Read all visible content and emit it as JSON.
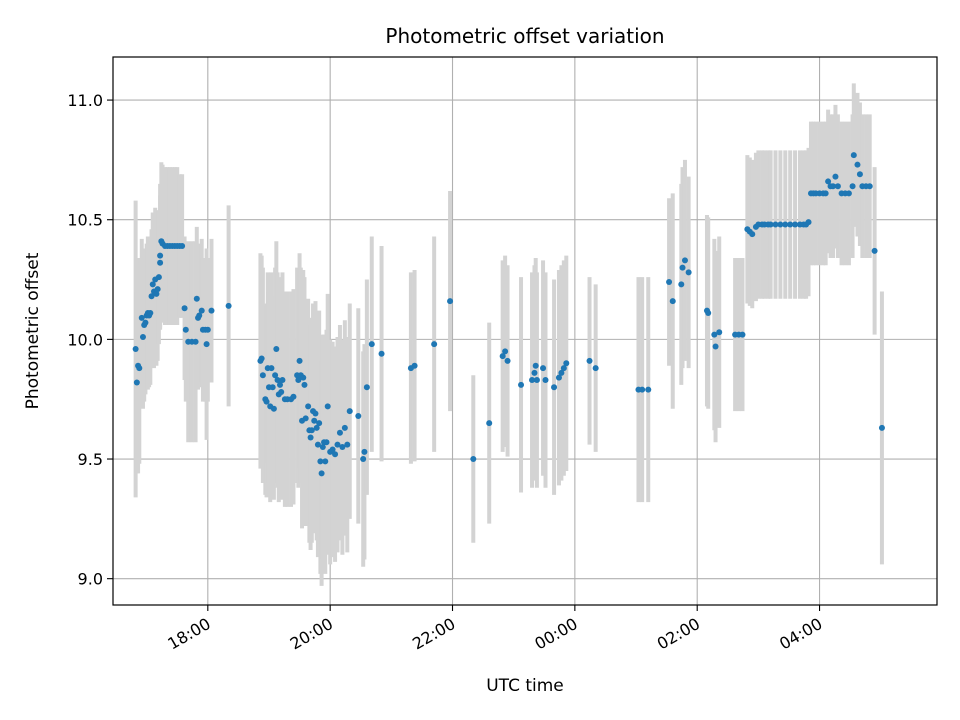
{
  "chart_data": {
    "type": "scatter",
    "title": "Photometric offset variation",
    "xlabel": "UTC time",
    "ylabel": "Photometric offset",
    "ylim": [
      8.89,
      11.18
    ],
    "xlim_hours": [
      16.45,
      29.92
    ],
    "x_ticks": [
      {
        "value": 18,
        "label": "18:00"
      },
      {
        "value": 20,
        "label": "20:00"
      },
      {
        "value": 22,
        "label": "22:00"
      },
      {
        "value": 24,
        "label": "00:00"
      },
      {
        "value": 26,
        "label": "02:00"
      },
      {
        "value": 28,
        "label": "04:00"
      }
    ],
    "y_ticks": [
      {
        "value": 9.0,
        "label": "9.0"
      },
      {
        "value": 9.5,
        "label": "9.5"
      },
      {
        "value": 10.0,
        "label": "10.0"
      },
      {
        "value": 10.5,
        "label": "10.5"
      },
      {
        "value": 11.0,
        "label": "11.0"
      }
    ],
    "grid": true,
    "colors": {
      "marker": "#1f77b4",
      "errorbar": "#d3d3d3",
      "grid": "#b0b0b0",
      "axes": "#000000"
    },
    "series": [
      {
        "name": "Photometric offset",
        "points": [
          [
            16.82,
            9.96,
            0.62
          ],
          [
            16.84,
            9.82,
            0.38
          ],
          [
            16.86,
            9.89,
            0.45
          ],
          [
            16.88,
            9.88,
            0.4
          ],
          [
            16.92,
            10.09,
            0.33
          ],
          [
            16.94,
            10.01,
            0.3
          ],
          [
            16.96,
            10.06,
            0.32
          ],
          [
            16.98,
            10.07,
            0.3
          ],
          [
            17.0,
            10.1,
            0.3
          ],
          [
            17.02,
            10.11,
            0.32
          ],
          [
            17.04,
            10.1,
            0.3
          ],
          [
            17.06,
            10.11,
            0.3
          ],
          [
            17.08,
            10.18,
            0.28
          ],
          [
            17.1,
            10.23,
            0.3
          ],
          [
            17.12,
            10.2,
            0.32
          ],
          [
            17.14,
            10.25,
            0.3
          ],
          [
            17.16,
            10.19,
            0.3
          ],
          [
            17.18,
            10.21,
            0.3
          ],
          [
            17.2,
            10.26,
            0.28
          ],
          [
            17.22,
            10.35,
            0.3
          ],
          [
            17.22,
            10.32,
            0.28
          ],
          [
            17.24,
            10.41,
            0.33
          ],
          [
            17.26,
            10.4,
            0.33
          ],
          [
            17.3,
            10.39,
            0.33
          ],
          [
            17.34,
            10.39,
            0.33
          ],
          [
            17.38,
            10.39,
            0.33
          ],
          [
            17.42,
            10.39,
            0.33
          ],
          [
            17.46,
            10.39,
            0.33
          ],
          [
            17.5,
            10.39,
            0.33
          ],
          [
            17.54,
            10.39,
            0.3
          ],
          [
            17.58,
            10.39,
            0.3
          ],
          [
            17.62,
            10.13,
            0.3
          ],
          [
            17.64,
            10.04,
            0.3
          ],
          [
            17.68,
            9.99,
            0.42
          ],
          [
            17.74,
            9.99,
            0.42
          ],
          [
            17.8,
            9.99,
            0.42
          ],
          [
            17.82,
            10.17,
            0.3
          ],
          [
            17.84,
            10.09,
            0.3
          ],
          [
            17.86,
            10.1,
            0.3
          ],
          [
            17.9,
            10.12,
            0.3
          ],
          [
            17.92,
            10.04,
            0.3
          ],
          [
            17.96,
            10.04,
            0.3
          ],
          [
            17.98,
            9.98,
            0.4
          ],
          [
            18.0,
            10.04,
            0.3
          ],
          [
            18.06,
            10.12,
            0.3
          ],
          [
            18.34,
            10.14,
            0.42
          ],
          [
            18.86,
            9.91,
            0.45
          ],
          [
            18.88,
            9.92,
            0.43
          ],
          [
            18.9,
            9.85,
            0.45
          ],
          [
            18.94,
            9.75,
            0.4
          ],
          [
            18.96,
            9.74,
            0.4
          ],
          [
            18.98,
            9.88,
            0.4
          ],
          [
            19.0,
            9.8,
            0.4
          ],
          [
            19.02,
            9.72,
            0.4
          ],
          [
            19.04,
            9.88,
            0.4
          ],
          [
            19.06,
            9.8,
            0.38
          ],
          [
            19.08,
            9.71,
            0.38
          ],
          [
            19.1,
            9.85,
            0.45
          ],
          [
            19.12,
            9.96,
            0.45
          ],
          [
            19.14,
            9.83,
            0.45
          ],
          [
            19.16,
            9.77,
            0.45
          ],
          [
            19.18,
            9.81,
            0.45
          ],
          [
            19.2,
            9.78,
            0.45
          ],
          [
            19.22,
            9.83,
            0.45
          ],
          [
            19.26,
            9.75,
            0.45
          ],
          [
            19.3,
            9.75,
            0.45
          ],
          [
            19.36,
            9.75,
            0.45
          ],
          [
            19.4,
            9.76,
            0.45
          ],
          [
            19.46,
            9.85,
            0.45
          ],
          [
            19.48,
            9.83,
            0.45
          ],
          [
            19.5,
            9.91,
            0.45
          ],
          [
            19.52,
            9.85,
            0.45
          ],
          [
            19.54,
            9.66,
            0.45
          ],
          [
            19.56,
            9.84,
            0.45
          ],
          [
            19.58,
            9.81,
            0.45
          ],
          [
            19.6,
            9.67,
            0.45
          ],
          [
            19.64,
            9.72,
            0.45
          ],
          [
            19.66,
            9.62,
            0.47
          ],
          [
            19.68,
            9.59,
            0.47
          ],
          [
            19.7,
            9.62,
            0.47
          ],
          [
            19.72,
            9.7,
            0.45
          ],
          [
            19.74,
            9.66,
            0.47
          ],
          [
            19.76,
            9.69,
            0.47
          ],
          [
            19.78,
            9.63,
            0.47
          ],
          [
            19.8,
            9.56,
            0.47
          ],
          [
            19.82,
            9.65,
            0.47
          ],
          [
            19.84,
            9.49,
            0.47
          ],
          [
            19.86,
            9.44,
            0.47
          ],
          [
            19.88,
            9.55,
            0.47
          ],
          [
            19.9,
            9.57,
            0.45
          ],
          [
            19.92,
            9.49,
            0.47
          ],
          [
            19.94,
            9.57,
            0.47
          ],
          [
            19.96,
            9.72,
            0.47
          ],
          [
            20.0,
            9.53,
            0.47
          ],
          [
            20.04,
            9.54,
            0.45
          ],
          [
            20.08,
            9.52,
            0.45
          ],
          [
            20.12,
            9.56,
            0.45
          ],
          [
            20.16,
            9.61,
            0.45
          ],
          [
            20.2,
            9.55,
            0.45
          ],
          [
            20.24,
            9.63,
            0.45
          ],
          [
            20.28,
            9.56,
            0.45
          ],
          [
            20.32,
            9.7,
            0.45
          ],
          [
            20.46,
            9.68,
            0.45
          ],
          [
            20.54,
            9.5,
            0.45
          ],
          [
            20.56,
            9.53,
            0.45
          ],
          [
            20.6,
            9.8,
            0.45
          ],
          [
            20.68,
            9.98,
            0.45
          ],
          [
            20.84,
            9.94,
            0.45
          ],
          [
            21.32,
            9.88,
            0.4
          ],
          [
            21.38,
            9.89,
            0.4
          ],
          [
            21.7,
            9.98,
            0.45
          ],
          [
            21.96,
            10.16,
            0.46
          ],
          [
            22.34,
            9.5,
            0.35
          ],
          [
            22.6,
            9.65,
            0.42
          ],
          [
            22.82,
            9.93,
            0.4
          ],
          [
            22.86,
            9.95,
            0.4
          ],
          [
            22.9,
            9.91,
            0.4
          ],
          [
            23.12,
            9.81,
            0.45
          ],
          [
            23.3,
            9.83,
            0.45
          ],
          [
            23.34,
            9.86,
            0.45
          ],
          [
            23.36,
            9.89,
            0.45
          ],
          [
            23.38,
            9.83,
            0.45
          ],
          [
            23.48,
            9.88,
            0.45
          ],
          [
            23.52,
            9.83,
            0.45
          ],
          [
            23.66,
            9.8,
            0.45
          ],
          [
            23.74,
            9.84,
            0.45
          ],
          [
            23.78,
            9.86,
            0.45
          ],
          [
            23.82,
            9.88,
            0.45
          ],
          [
            23.86,
            9.9,
            0.45
          ],
          [
            24.24,
            9.91,
            0.35
          ],
          [
            24.34,
            9.88,
            0.35
          ],
          [
            25.04,
            9.79,
            0.47
          ],
          [
            25.1,
            9.79,
            0.47
          ],
          [
            25.2,
            9.79,
            0.47
          ],
          [
            25.54,
            10.24,
            0.35
          ],
          [
            25.6,
            10.16,
            0.45
          ],
          [
            25.74,
            10.23,
            0.42
          ],
          [
            25.76,
            10.3,
            0.42
          ],
          [
            25.8,
            10.33,
            0.42
          ],
          [
            25.86,
            10.28,
            0.4
          ],
          [
            26.16,
            10.12,
            0.4
          ],
          [
            26.18,
            10.11,
            0.4
          ],
          [
            26.28,
            10.02,
            0.4
          ],
          [
            26.3,
            9.97,
            0.4
          ],
          [
            26.36,
            10.03,
            0.4
          ],
          [
            26.62,
            10.02,
            0.32
          ],
          [
            26.68,
            10.02,
            0.32
          ],
          [
            26.74,
            10.02,
            0.32
          ],
          [
            26.82,
            10.46,
            0.31
          ],
          [
            26.86,
            10.45,
            0.31
          ],
          [
            26.9,
            10.44,
            0.31
          ],
          [
            26.96,
            10.47,
            0.31
          ],
          [
            27.0,
            10.48,
            0.31
          ],
          [
            27.06,
            10.48,
            0.31
          ],
          [
            27.1,
            10.48,
            0.31
          ],
          [
            27.16,
            10.48,
            0.31
          ],
          [
            27.2,
            10.48,
            0.31
          ],
          [
            27.28,
            10.48,
            0.31
          ],
          [
            27.36,
            10.48,
            0.31
          ],
          [
            27.44,
            10.48,
            0.31
          ],
          [
            27.52,
            10.48,
            0.31
          ],
          [
            27.6,
            10.48,
            0.31
          ],
          [
            27.68,
            10.48,
            0.31
          ],
          [
            27.74,
            10.48,
            0.31
          ],
          [
            27.78,
            10.48,
            0.31
          ],
          [
            27.82,
            10.49,
            0.31
          ],
          [
            27.86,
            10.61,
            0.3
          ],
          [
            27.9,
            10.61,
            0.3
          ],
          [
            27.94,
            10.61,
            0.3
          ],
          [
            28.0,
            10.61,
            0.3
          ],
          [
            28.06,
            10.61,
            0.3
          ],
          [
            28.1,
            10.61,
            0.3
          ],
          [
            28.14,
            10.66,
            0.3
          ],
          [
            28.18,
            10.64,
            0.3
          ],
          [
            28.22,
            10.64,
            0.3
          ],
          [
            28.26,
            10.68,
            0.3
          ],
          [
            28.3,
            10.64,
            0.3
          ],
          [
            28.36,
            10.61,
            0.3
          ],
          [
            28.42,
            10.61,
            0.3
          ],
          [
            28.48,
            10.61,
            0.3
          ],
          [
            28.54,
            10.64,
            0.3
          ],
          [
            28.56,
            10.77,
            0.3
          ],
          [
            28.62,
            10.73,
            0.3
          ],
          [
            28.66,
            10.69,
            0.3
          ],
          [
            28.7,
            10.64,
            0.3
          ],
          [
            28.76,
            10.64,
            0.3
          ],
          [
            28.82,
            10.64,
            0.3
          ],
          [
            28.9,
            10.37,
            0.35
          ],
          [
            29.02,
            9.63,
            0.57
          ]
        ]
      }
    ]
  }
}
